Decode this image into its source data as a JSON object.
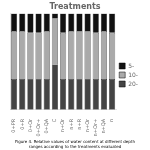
{
  "chart_data": {
    "type": "bar",
    "title": "Treatments",
    "subtitle": "Figure 4. Relative values of water content at different depth\nranges according to the treatments evaluated",
    "categories": [
      "0+PR",
      "0+R",
      "0+Or",
      "0+Or+",
      "0+QA",
      "C",
      "n+Or",
      "n+R",
      "n+R",
      "n+Or",
      "n+Or+",
      "n+QA",
      "n"
    ],
    "series": [
      {
        "name": "20-",
        "color": "#444444",
        "values": [
          0.32,
          0.32,
          0.32,
          0.32,
          0.32,
          0.47,
          0.32,
          0.32,
          0.32,
          0.32,
          0.32,
          0.32,
          0.32
        ]
      },
      {
        "name": "10-",
        "color": "#aaaaaa",
        "values": [
          0.5,
          0.5,
          0.48,
          0.48,
          0.5,
          0.48,
          0.48,
          0.5,
          0.5,
          0.5,
          0.48,
          0.5,
          0.48
        ]
      },
      {
        "name": "5-",
        "color": "#111111",
        "values": [
          0.18,
          0.18,
          0.2,
          0.2,
          0.18,
          0.05,
          0.2,
          0.18,
          0.18,
          0.18,
          0.2,
          0.18,
          0.2
        ]
      }
    ],
    "stacked": true,
    "ylim": [
      0,
      1.0
    ],
    "yticks": [],
    "tick_labels": "x",
    "grid": false,
    "legend": "right"
  }
}
